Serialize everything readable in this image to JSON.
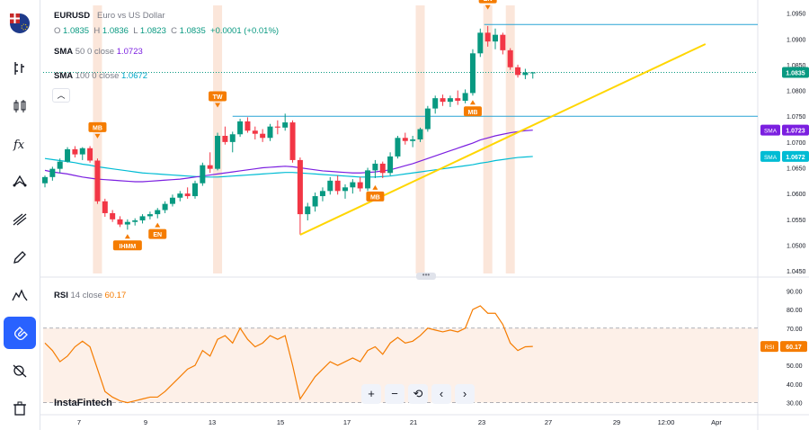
{
  "legend": {
    "symbol": "EURUSD",
    "description": "Euro vs US Dollar",
    "ohlc": [
      {
        "k": "O",
        "v": "1.0835"
      },
      {
        "k": "H",
        "v": "1.0836"
      },
      {
        "k": "L",
        "v": "1.0823"
      },
      {
        "k": "C",
        "v": "1.0835"
      }
    ],
    "change": "+0.0001 (+0.01%)",
    "sma50": {
      "name": "SMA",
      "params": "50 0 close",
      "value": "1.0723"
    },
    "sma100": {
      "name": "SMA",
      "params": "100 0 close",
      "value": "1.0672"
    },
    "rsi": {
      "name": "RSI",
      "params": "14 close",
      "value": "60.17"
    }
  },
  "brand": "InstaFintech",
  "colors": {
    "up": "#089981",
    "down": "#f23645",
    "sma50": "#7b1fe0",
    "sma100": "#00bcd4",
    "rsi": "#f57c00",
    "trend": "#ffd600",
    "badge": "#f57c00",
    "highlight": "#fbe3d6"
  },
  "toolbar_icons": [
    "flag-icon",
    "crosshair-icon",
    "candles-icon",
    "fx-icon",
    "trend-line-icon",
    "fib-icon",
    "brush-icon",
    "patterns-icon",
    "magnet-icon",
    "eye-off-icon",
    "trash-icon"
  ],
  "nav_buttons": [
    "+",
    "−",
    "⟲",
    "‹",
    "›"
  ],
  "chart_data": {
    "type": "candlestick",
    "symbol": "EURUSD",
    "price_axis": {
      "ticks": [
        "1.0950",
        "1.0900",
        "1.0850",
        "1.0800",
        "1.0750",
        "1.0700",
        "1.0650",
        "1.0600",
        "1.0550",
        "1.0500",
        "1.0450"
      ],
      "range": [
        1.0445,
        1.0965
      ]
    },
    "time_axis": {
      "labels": [
        "7",
        "9",
        "13",
        "15",
        "17",
        "21",
        "23",
        "27",
        "29",
        "12:00",
        "Apr"
      ]
    },
    "price_badges": [
      {
        "label": "1.0835",
        "price": 1.0835,
        "color": "#089981",
        "text": "1.0835"
      },
      {
        "label": "SMA",
        "price": 1.0723,
        "color": "#7b1fe0",
        "text": "1.0723"
      },
      {
        "label": "SMA",
        "price": 1.0672,
        "color": "#00bcd4",
        "text": "1.0672"
      }
    ],
    "candles": [
      [
        1.062,
        1.0635,
        1.0612,
        1.0632
      ],
      [
        1.0632,
        1.0652,
        1.0625,
        1.0648
      ],
      [
        1.0648,
        1.0668,
        1.064,
        1.0662
      ],
      [
        1.0662,
        1.069,
        1.066,
        1.0686
      ],
      [
        1.0686,
        1.0692,
        1.067,
        1.0676
      ],
      [
        1.0676,
        1.069,
        1.0665,
        1.0688
      ],
      [
        1.0688,
        1.0692,
        1.066,
        1.0664
      ],
      [
        1.0664,
        1.0668,
        1.058,
        1.0585
      ],
      [
        1.0585,
        1.059,
        1.0555,
        1.0562
      ],
      [
        1.0562,
        1.0568,
        1.0545,
        1.055
      ],
      [
        1.055,
        1.0556,
        1.0535,
        1.054
      ],
      [
        1.054,
        1.055,
        1.053,
        1.0545
      ],
      [
        1.0545,
        1.0552,
        1.0538,
        1.0548
      ],
      [
        1.0548,
        1.056,
        1.0542,
        1.0556
      ],
      [
        1.0556,
        1.0565,
        1.055,
        1.056
      ],
      [
        1.056,
        1.0572,
        1.0552,
        1.0568
      ],
      [
        1.0568,
        1.0585,
        1.0562,
        1.058
      ],
      [
        1.058,
        1.0598,
        1.0575,
        1.0592
      ],
      [
        1.0592,
        1.0605,
        1.0585,
        1.06
      ],
      [
        1.06,
        1.0612,
        1.059,
        1.0595
      ],
      [
        1.0595,
        1.0625,
        1.059,
        1.062
      ],
      [
        1.062,
        1.066,
        1.0615,
        1.0655
      ],
      [
        1.0655,
        1.068,
        1.064,
        1.0648
      ],
      [
        1.0648,
        1.0718,
        1.0645,
        1.0712
      ],
      [
        1.0712,
        1.073,
        1.0695,
        1.07
      ],
      [
        1.07,
        1.072,
        1.068,
        1.0715
      ],
      [
        1.0715,
        1.0745,
        1.071,
        1.074
      ],
      [
        1.074,
        1.0748,
        1.0718,
        1.0722
      ],
      [
        1.0722,
        1.073,
        1.0705,
        1.0716
      ],
      [
        1.0716,
        1.0725,
        1.07,
        1.0708
      ],
      [
        1.0708,
        1.0735,
        1.0702,
        1.073
      ],
      [
        1.073,
        1.0742,
        1.0715,
        1.0728
      ],
      [
        1.0728,
        1.0755,
        1.0722,
        1.0738
      ],
      [
        1.0738,
        1.0742,
        1.066,
        1.0665
      ],
      [
        1.0665,
        1.067,
        1.052,
        1.056
      ],
      [
        1.056,
        1.0582,
        1.0548,
        1.0575
      ],
      [
        1.0575,
        1.0602,
        1.0565,
        1.0595
      ],
      [
        1.0595,
        1.0612,
        1.0585,
        1.0605
      ],
      [
        1.0605,
        1.0632,
        1.0598,
        1.0625
      ],
      [
        1.0625,
        1.0635,
        1.0598,
        1.0605
      ],
      [
        1.0605,
        1.0618,
        1.059,
        1.0612
      ],
      [
        1.0612,
        1.0628,
        1.06,
        1.0622
      ],
      [
        1.0622,
        1.0632,
        1.0604,
        1.061
      ],
      [
        1.061,
        1.065,
        1.0605,
        1.0645
      ],
      [
        1.0645,
        1.0665,
        1.063,
        1.0658
      ],
      [
        1.0658,
        1.0662,
        1.063,
        1.064
      ],
      [
        1.064,
        1.068,
        1.0635,
        1.0672
      ],
      [
        1.0672,
        1.0712,
        1.0668,
        1.0708
      ],
      [
        1.0708,
        1.0718,
        1.0695,
        1.0702
      ],
      [
        1.0702,
        1.0712,
        1.069,
        1.0705
      ],
      [
        1.0705,
        1.0728,
        1.07,
        1.0725
      ],
      [
        1.0725,
        1.077,
        1.072,
        1.0765
      ],
      [
        1.0765,
        1.079,
        1.0755,
        1.0785
      ],
      [
        1.0785,
        1.0792,
        1.077,
        1.0778
      ],
      [
        1.0778,
        1.079,
        1.0768,
        1.0785
      ],
      [
        1.0785,
        1.08,
        1.0772,
        1.078
      ],
      [
        1.078,
        1.0802,
        1.0775,
        1.0795
      ],
      [
        1.0795,
        1.088,
        1.079,
        1.0872
      ],
      [
        1.0872,
        1.092,
        1.0865,
        1.0912
      ],
      [
        1.0912,
        1.0925,
        1.0885,
        1.0895
      ],
      [
        1.0895,
        1.092,
        1.088,
        1.0908
      ],
      [
        1.0908,
        1.0912,
        1.087,
        1.0878
      ],
      [
        1.0878,
        1.0882,
        1.084,
        1.0845
      ],
      [
        1.0845,
        1.085,
        1.0825,
        1.083
      ],
      [
        1.083,
        1.0842,
        1.0822,
        1.0835
      ],
      [
        1.0835,
        1.0836,
        1.0823,
        1.0835
      ]
    ],
    "sma50": [
      1.0645,
      1.0642,
      1.064,
      1.0638,
      1.0635,
      1.0632,
      1.063,
      1.0628,
      1.0627,
      1.0626,
      1.0625,
      1.0624,
      1.0623,
      1.0623,
      1.0624,
      1.0625,
      1.0626,
      1.0627,
      1.0628,
      1.063,
      1.0632,
      1.0634,
      1.0636,
      1.0638,
      1.064,
      1.0642,
      1.0644,
      1.0646,
      1.0648,
      1.065,
      1.0651,
      1.0652,
      1.0653,
      1.0652,
      1.065,
      1.0648,
      1.0646,
      1.0644,
      1.0643,
      1.0642,
      1.0641,
      1.064,
      1.064,
      1.0641,
      1.0642,
      1.0644,
      1.0646,
      1.065,
      1.0654,
      1.0658,
      1.0663,
      1.0668,
      1.0673,
      1.0678,
      1.0683,
      1.0688,
      1.0693,
      1.0698,
      1.0704,
      1.0708,
      1.0712,
      1.0715,
      1.0718,
      1.072,
      1.0722,
      1.0723
    ],
    "sma100": [
      1.0668,
      1.0666,
      1.0664,
      1.0662,
      1.066,
      1.0657,
      1.0655,
      1.0652,
      1.065,
      1.0648,
      1.0646,
      1.0644,
      1.0642,
      1.064,
      1.0639,
      1.0638,
      1.0637,
      1.0636,
      1.0635,
      1.0634,
      1.0633,
      1.0632,
      1.0632,
      1.0632,
      1.0633,
      1.0634,
      1.0635,
      1.0636,
      1.0637,
      1.0638,
      1.0639,
      1.064,
      1.0641,
      1.0641,
      1.064,
      1.0639,
      1.0638,
      1.0637,
      1.0636,
      1.0635,
      1.0634,
      1.0633,
      1.0632,
      1.0632,
      1.0632,
      1.0633,
      1.0634,
      1.0636,
      1.0638,
      1.064,
      1.0642,
      1.0644,
      1.0646,
      1.0648,
      1.065,
      1.0652,
      1.0654,
      1.0656,
      1.0659,
      1.0661,
      1.0664,
      1.0666,
      1.0668,
      1.067,
      1.0671,
      1.0672
    ],
    "resistance_levels": [
      1.0928,
      1.075
    ],
    "trend_line": {
      "from": [
        34,
        1.052
      ],
      "to": [
        88,
        1.089
      ]
    },
    "highlight_candles": [
      7,
      23,
      50,
      59,
      62
    ],
    "annotations": [
      {
        "label": "MB",
        "candle": 7,
        "dir": "down",
        "price": 1.07
      },
      {
        "label": "IHMM",
        "candle": 11,
        "dir": "up",
        "price": 1.053
      },
      {
        "label": "EN",
        "candle": 15,
        "dir": "up",
        "price": 1.0552
      },
      {
        "label": "TW",
        "candle": 23,
        "dir": "down",
        "price": 1.076
      },
      {
        "label": "MB",
        "candle": 44,
        "dir": "up",
        "price": 1.0625
      },
      {
        "label": "MB",
        "candle": 57,
        "dir": "up",
        "price": 1.079
      },
      {
        "label": "EN",
        "candle": 59,
        "dir": "down",
        "price": 1.095
      }
    ],
    "rsi": {
      "ticks": [
        "90.00",
        "80.00",
        "70.00",
        "60.00",
        "50.00",
        "40.00",
        "30.00"
      ],
      "range": [
        25,
        95
      ],
      "levels": [
        70,
        30
      ],
      "values": [
        62,
        58,
        52,
        55,
        60,
        63,
        60,
        48,
        36,
        33,
        31,
        30,
        31,
        32,
        33,
        33,
        36,
        40,
        44,
        48,
        50,
        58,
        55,
        64,
        66,
        62,
        70,
        64,
        60,
        62,
        66,
        64,
        66,
        50,
        32,
        38,
        44,
        48,
        52,
        50,
        52,
        54,
        52,
        58,
        60,
        56,
        62,
        65,
        62,
        63,
        66,
        70,
        69,
        68,
        69,
        68,
        70,
        80,
        82,
        78,
        78,
        72,
        62,
        58,
        60,
        60.17
      ]
    }
  }
}
